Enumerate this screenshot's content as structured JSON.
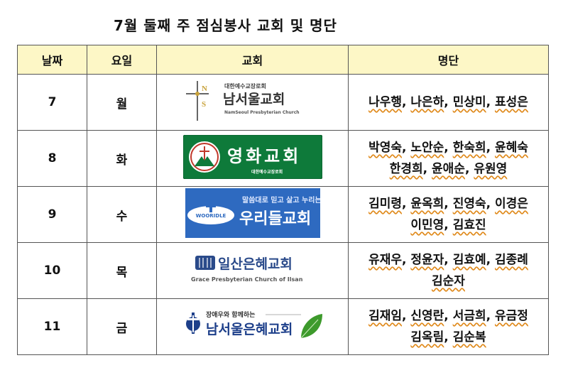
{
  "title": "7월 둘째 주 점심봉사 교회 및 명단",
  "headers": {
    "date": "날짜",
    "day": "요일",
    "church": "교회",
    "roster": "명단"
  },
  "rows": [
    {
      "date": "7",
      "day": "월",
      "logo": {
        "subtitle": "대한예수교장로회",
        "name": "남서울교회",
        "english": "NamSeoul Presbyterian Church",
        "mark": "NS",
        "icon": "cross-icon"
      },
      "names": [
        [
          "나우행",
          "나은하",
          "민상미",
          "표성은"
        ]
      ]
    },
    {
      "date": "8",
      "day": "화",
      "logo": {
        "name": "영화교회",
        "subtitle": "대한예수교장로회",
        "icon": "church-circle-icon",
        "colors": {
          "bg": "#0e7a3a",
          "fg": "#ffffff"
        }
      },
      "names": [
        [
          "박영숙",
          "노안순",
          "한숙희",
          "윤혜숙"
        ],
        [
          "한경희",
          "윤애순",
          "유원영"
        ]
      ]
    },
    {
      "date": "9",
      "day": "수",
      "logo": {
        "tagline": "말씀대로 믿고 살고 누리는",
        "name": "우리들교회",
        "badge": "WOORIDLE",
        "colors": {
          "bg": "#2e6ac0",
          "fg": "#ffffff"
        }
      },
      "names": [
        [
          "김미령",
          "윤옥희",
          "진영숙",
          "이경은"
        ],
        [
          "이민영",
          "김효진"
        ]
      ]
    },
    {
      "date": "10",
      "day": "목",
      "logo": {
        "name": "일산은혜교회",
        "english": "Grace Presbyterian Church of Ilsan",
        "icon": "book-icon",
        "colors": {
          "fg": "#2a4a8a"
        }
      },
      "names": [
        [
          "유재우",
          "정윤자",
          "김효예",
          "김종례"
        ],
        [
          "김순자"
        ]
      ]
    },
    {
      "date": "11",
      "day": "금",
      "logo": {
        "tagline": "장애우와 함께하는",
        "name": "남서울은혜교회",
        "icon": "leaf-icon",
        "colors": {
          "fg": "#1d3f8a",
          "leaf": "#3d9a2c"
        }
      },
      "names": [
        [
          "김재임",
          "신영란",
          "서금희",
          "유금정"
        ],
        [
          "김옥림",
          "김순복"
        ]
      ]
    }
  ]
}
